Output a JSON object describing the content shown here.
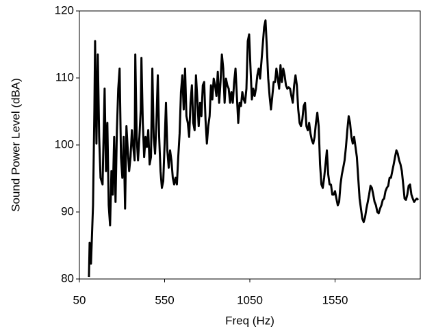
{
  "chart_data": {
    "type": "line",
    "xlabel": "Freq (Hz)",
    "ylabel": "Sound Power Level (dBA)",
    "xlim": [
      50,
      2050
    ],
    "xticks": [
      50,
      550,
      1050,
      1550
    ],
    "ylim": [
      80,
      120
    ],
    "yticks": [
      80,
      90,
      100,
      110,
      120
    ],
    "grid": false,
    "color": "#000000",
    "x": [
      106,
      110,
      118,
      130,
      138,
      142,
      150,
      158,
      166,
      174,
      186,
      198,
      206,
      214,
      222,
      230,
      238,
      246,
      254,
      262,
      270,
      278,
      286,
      294,
      302,
      310,
      318,
      326,
      334,
      342,
      350,
      358,
      366,
      374,
      378,
      386,
      394,
      402,
      410,
      414,
      422,
      430,
      438,
      446,
      454,
      462,
      470,
      478,
      486,
      494,
      502,
      510,
      518,
      526,
      534,
      542,
      550,
      558,
      566,
      574,
      582,
      590,
      598,
      606,
      614,
      622,
      630,
      638,
      646,
      654,
      662,
      670,
      678,
      686,
      694,
      702,
      710,
      718,
      726,
      734,
      742,
      750,
      758,
      766,
      774,
      782,
      790,
      798,
      806,
      814,
      822,
      830,
      838,
      846,
      854,
      862,
      870,
      878,
      886,
      894,
      902,
      910,
      918,
      926,
      934,
      942,
      950,
      958,
      966,
      974,
      982,
      990,
      998,
      1006,
      1014,
      1022,
      1030,
      1038,
      1046,
      1054,
      1062,
      1070,
      1078,
      1086,
      1094,
      1102,
      1110,
      1118,
      1126,
      1134,
      1142,
      1150,
      1158,
      1166,
      1174,
      1182,
      1190,
      1198,
      1206,
      1214,
      1222,
      1230,
      1238,
      1246,
      1254,
      1262,
      1270,
      1278,
      1286,
      1294,
      1302,
      1310,
      1318,
      1326,
      1334,
      1342,
      1350,
      1358,
      1366,
      1374,
      1382,
      1390,
      1398,
      1406,
      1414,
      1422,
      1430,
      1438,
      1446,
      1454,
      1462,
      1470,
      1478,
      1486,
      1494,
      1502,
      1510,
      1518,
      1526,
      1534,
      1542,
      1550,
      1558,
      1566,
      1574,
      1582,
      1590,
      1598,
      1606,
      1614,
      1622,
      1630,
      1638,
      1646,
      1654,
      1662,
      1670,
      1678,
      1686,
      1694,
      1702,
      1710,
      1718,
      1726,
      1734,
      1742,
      1750,
      1758,
      1766,
      1774,
      1782,
      1790,
      1798,
      1806,
      1814,
      1822,
      1830,
      1838,
      1846,
      1854,
      1862,
      1870,
      1878,
      1886,
      1894,
      1902,
      1910,
      1918,
      1926,
      1934,
      1942,
      1950,
      1958,
      1966,
      1974,
      1982,
      1990,
      1998,
      2006,
      2014,
      2022,
      2030,
      2038
    ],
    "values": [
      80.3,
      85.4,
      82.3,
      91.0,
      105.3,
      115.5,
      100.2,
      113.5,
      101.2,
      95.1,
      94.1,
      108.4,
      96.1,
      103.3,
      91.0,
      88.0,
      96.1,
      92.6,
      101.2,
      91.5,
      102.2,
      108.4,
      111.4,
      98.2,
      95.1,
      101.2,
      90.5,
      102.8,
      99.2,
      96.1,
      98.2,
      102.2,
      99.7,
      97.7,
      113.5,
      101.2,
      97.7,
      101.2,
      105.3,
      113.0,
      103.3,
      98.2,
      101.2,
      99.7,
      102.2,
      97.1,
      98.2,
      111.4,
      101.2,
      98.7,
      103.3,
      110.4,
      101.2,
      96.1,
      93.6,
      94.6,
      100.2,
      106.3,
      99.2,
      96.6,
      99.2,
      97.7,
      95.1,
      94.1,
      95.1,
      94.1,
      98.2,
      101.7,
      107.9,
      110.4,
      105.3,
      111.4,
      104.3,
      103.3,
      101.2,
      106.3,
      108.9,
      103.3,
      102.2,
      110.4,
      106.8,
      102.8,
      106.3,
      104.3,
      108.9,
      109.4,
      103.8,
      100.2,
      102.8,
      104.3,
      108.9,
      106.8,
      109.9,
      108.9,
      107.3,
      110.9,
      106.3,
      109.4,
      113.5,
      111.4,
      106.3,
      109.9,
      108.9,
      108.4,
      106.3,
      107.9,
      106.3,
      109.4,
      111.4,
      107.3,
      103.3,
      106.3,
      105.8,
      107.9,
      106.8,
      106.3,
      108.4,
      115.5,
      116.5,
      111.4,
      106.8,
      108.4,
      107.3,
      108.4,
      110.4,
      111.4,
      109.9,
      112.4,
      115.0,
      117.6,
      118.6,
      114.5,
      109.9,
      107.3,
      105.3,
      107.3,
      109.4,
      109.4,
      111.4,
      109.9,
      108.4,
      111.9,
      109.4,
      111.4,
      110.4,
      108.9,
      108.4,
      108.6,
      108.4,
      107.3,
      106.3,
      108.9,
      110.4,
      108.9,
      105.3,
      103.3,
      102.8,
      103.8,
      105.8,
      106.3,
      102.8,
      102.2,
      103.3,
      101.7,
      100.7,
      100.2,
      101.2,
      103.3,
      104.8,
      102.8,
      97.1,
      94.1,
      93.6,
      95.1,
      97.1,
      99.2,
      95.6,
      94.1,
      94.1,
      92.6,
      92.6,
      93.1,
      92.0,
      91.0,
      91.5,
      94.1,
      95.6,
      96.6,
      97.7,
      99.7,
      102.2,
      104.3,
      103.3,
      101.2,
      100.2,
      101.2,
      99.7,
      98.2,
      95.1,
      92.0,
      90.5,
      89.0,
      88.5,
      89.2,
      90.5,
      91.5,
      92.6,
      93.9,
      93.6,
      92.6,
      91.5,
      91.0,
      90.0,
      89.8,
      90.5,
      91.0,
      91.8,
      92.0,
      93.1,
      93.6,
      93.9,
      95.1,
      95.1,
      96.1,
      97.1,
      98.2,
      99.2,
      98.7,
      97.7,
      97.1,
      96.1,
      94.1,
      92.0,
      91.8,
      92.6,
      93.9,
      94.1,
      92.6,
      92.0,
      91.5,
      91.8,
      92.0,
      91.8
    ]
  }
}
